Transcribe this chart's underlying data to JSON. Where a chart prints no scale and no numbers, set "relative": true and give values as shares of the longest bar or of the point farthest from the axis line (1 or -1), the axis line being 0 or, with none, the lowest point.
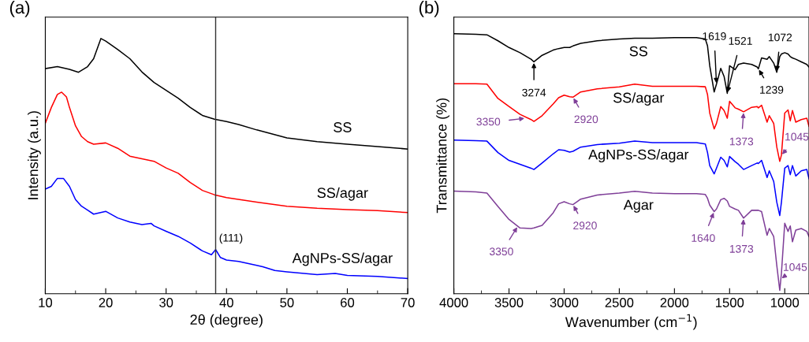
{
  "chart_data": [
    {
      "type": "line",
      "relative": true,
      "title": "(a)",
      "xlabel": "2θ (degree)",
      "ylabel": "Intensity (a.u.)",
      "xlim": [
        10,
        70
      ],
      "xticks": [
        10,
        20,
        30,
        40,
        50,
        60,
        70
      ],
      "legend": false,
      "grid": false,
      "series": [
        {
          "name": "SS",
          "color": "#000000",
          "x": [
            10,
            12,
            14,
            15.5,
            17,
            18,
            19.2,
            20,
            22,
            24,
            26,
            28,
            30,
            32,
            34,
            36,
            38,
            40,
            42,
            45,
            50,
            55,
            60,
            65,
            70
          ],
          "values": [
            0.882,
            0.89,
            0.879,
            0.868,
            0.89,
            0.921,
            1.0,
            0.99,
            0.957,
            0.921,
            0.869,
            0.828,
            0.797,
            0.766,
            0.73,
            0.699,
            0.684,
            0.675,
            0.663,
            0.642,
            0.611,
            0.596,
            0.586,
            0.577,
            0.567
          ]
        },
        {
          "name": "SS/agar",
          "color": "#ff0000",
          "x": [
            10,
            11,
            12,
            12.7,
            13.5,
            14,
            15,
            16,
            17,
            18,
            20,
            22,
            24,
            26,
            28,
            30,
            32,
            34,
            36,
            38,
            40,
            45,
            50,
            55,
            60,
            65,
            70
          ],
          "values": [
            0.668,
            0.73,
            0.781,
            0.79,
            0.771,
            0.73,
            0.658,
            0.616,
            0.596,
            0.586,
            0.591,
            0.57,
            0.539,
            0.529,
            0.519,
            0.493,
            0.472,
            0.436,
            0.405,
            0.388,
            0.377,
            0.359,
            0.343,
            0.335,
            0.33,
            0.326,
            0.318
          ]
        },
        {
          "name": "AgNPs-SS/agar",
          "color": "#0000ff",
          "x": [
            10,
            11,
            12,
            13,
            14,
            15,
            16,
            17,
            18,
            20,
            22,
            24,
            26,
            27.5,
            28,
            30,
            32,
            34,
            36,
            37.5,
            38.2,
            39,
            40,
            42,
            45,
            46,
            48,
            50,
            55,
            58,
            60,
            65,
            70
          ],
          "values": [
            0.41,
            0.421,
            0.452,
            0.452,
            0.421,
            0.369,
            0.343,
            0.328,
            0.312,
            0.323,
            0.297,
            0.281,
            0.271,
            0.276,
            0.266,
            0.245,
            0.225,
            0.199,
            0.168,
            0.153,
            0.173,
            0.142,
            0.132,
            0.127,
            0.111,
            0.106,
            0.091,
            0.086,
            0.075,
            0.08,
            0.072,
            0.068,
            0.06
          ]
        }
      ],
      "ref_lines": [
        {
          "axis": "x",
          "value": 38.2,
          "color": "#333333"
        }
      ],
      "annotations": [
        {
          "text": "(111)",
          "x": 38.2,
          "y": 0.173
        }
      ]
    },
    {
      "type": "line",
      "relative": true,
      "title": "(b)",
      "xlabel": "Wavenumber (cm$^{−1}$)",
      "ylabel": "Transmittance (%)",
      "xlim": [
        4000,
        780
      ],
      "xticks": [
        4000,
        3500,
        3000,
        2500,
        2000,
        1500,
        1000
      ],
      "legend": false,
      "grid": false,
      "x": [
        4000,
        3800,
        3700,
        3600,
        3500,
        3400,
        3300,
        3274,
        3200,
        3100,
        3050,
        3000,
        2950,
        2920,
        2850,
        2700,
        2500,
        2360,
        2200,
        2000,
        1800,
        1720,
        1700,
        1680,
        1640,
        1619,
        1580,
        1550,
        1521,
        1500,
        1450,
        1420,
        1373,
        1300,
        1250,
        1239,
        1210,
        1160,
        1140,
        1100,
        1072,
        1045,
        1030,
        1000,
        970,
        950,
        930,
        900,
        850,
        800,
        780
      ],
      "series": [
        {
          "name": "SS",
          "color": "#000000",
          "values": [
            1.0,
            0.998,
            0.996,
            0.973,
            0.947,
            0.927,
            0.902,
            0.892,
            0.917,
            0.937,
            0.943,
            0.947,
            0.947,
            0.953,
            0.963,
            0.973,
            0.98,
            0.983,
            0.983,
            0.985,
            0.985,
            0.98,
            0.953,
            0.877,
            0.776,
            0.806,
            0.867,
            0.836,
            0.771,
            0.877,
            0.862,
            0.882,
            0.887,
            0.882,
            0.872,
            0.865,
            0.907,
            0.902,
            0.912,
            0.887,
            0.852,
            0.912,
            0.922,
            0.927,
            0.922,
            0.912,
            0.907,
            0.902,
            0.892,
            0.882,
            0.872
          ]
        },
        {
          "name": "SS/agar",
          "color": "#ff0000",
          "values": [
            0.808,
            0.808,
            0.806,
            0.751,
            0.72,
            0.69,
            0.67,
            0.663,
            0.685,
            0.73,
            0.754,
            0.764,
            0.758,
            0.756,
            0.776,
            0.788,
            0.796,
            0.806,
            0.798,
            0.798,
            0.798,
            0.796,
            0.766,
            0.695,
            0.634,
            0.655,
            0.72,
            0.705,
            0.675,
            0.74,
            0.715,
            0.71,
            0.7,
            0.717,
            0.72,
            0.715,
            0.725,
            0.66,
            0.685,
            0.655,
            0.564,
            0.509,
            0.533,
            0.695,
            0.707,
            0.665,
            0.705,
            0.66,
            0.67,
            0.675,
            0.644
          ]
        },
        {
          "name": "AgNPs-SS/agar",
          "color": "#0000ff",
          "values": [
            0.591,
            0.589,
            0.587,
            0.543,
            0.513,
            0.498,
            0.483,
            0.478,
            0.503,
            0.538,
            0.554,
            0.552,
            0.545,
            0.548,
            0.564,
            0.574,
            0.579,
            0.587,
            0.581,
            0.581,
            0.581,
            0.576,
            0.543,
            0.493,
            0.461,
            0.483,
            0.525,
            0.513,
            0.488,
            0.528,
            0.508,
            0.498,
            0.478,
            0.493,
            0.503,
            0.501,
            0.513,
            0.447,
            0.473,
            0.432,
            0.352,
            0.301,
            0.352,
            0.483,
            0.493,
            0.458,
            0.493,
            0.453,
            0.473,
            0.478,
            0.442
          ]
        },
        {
          "name": "Agar",
          "color": "#7f3f98",
          "values": [
            0.395,
            0.392,
            0.387,
            0.336,
            0.286,
            0.253,
            0.251,
            0.253,
            0.263,
            0.311,
            0.346,
            0.354,
            0.346,
            0.343,
            0.364,
            0.38,
            0.387,
            0.394,
            0.387,
            0.385,
            0.385,
            0.382,
            0.367,
            0.341,
            0.316,
            0.326,
            0.362,
            0.367,
            0.357,
            0.336,
            0.326,
            0.321,
            0.291,
            0.321,
            0.321,
            0.321,
            0.316,
            0.225,
            0.251,
            0.22,
            0.109,
            0.013,
            0.079,
            0.271,
            0.24,
            0.261,
            0.2,
            0.245,
            0.251,
            0.24,
            0.22
          ]
        }
      ],
      "annotations": [
        {
          "text": "3274",
          "x": 3274,
          "y": 0.892
        },
        {
          "text": "1619",
          "x": 1619,
          "y": 0.806
        },
        {
          "text": "1521",
          "x": 1521,
          "y": 0.771
        },
        {
          "text": "1072",
          "x": 1072,
          "y": 0.852
        },
        {
          "text": "1239",
          "x": 1239,
          "y": 0.865
        },
        {
          "text": "3350",
          "x": 3350,
          "y": 0.675
        },
        {
          "text": "2920",
          "x": 2920,
          "y": 0.756
        },
        {
          "text": "1373",
          "x": 1373,
          "y": 0.7
        },
        {
          "text": "1045",
          "x": 1030,
          "y": 0.533
        },
        {
          "text": "3350",
          "x": 3420,
          "y": 0.26
        },
        {
          "text": "2920",
          "x": 2920,
          "y": 0.343
        },
        {
          "text": "1640",
          "x": 1640,
          "y": 0.316
        },
        {
          "text": "1373",
          "x": 1373,
          "y": 0.291
        },
        {
          "text": "1045",
          "x": 1035,
          "y": 0.057
        }
      ]
    }
  ]
}
